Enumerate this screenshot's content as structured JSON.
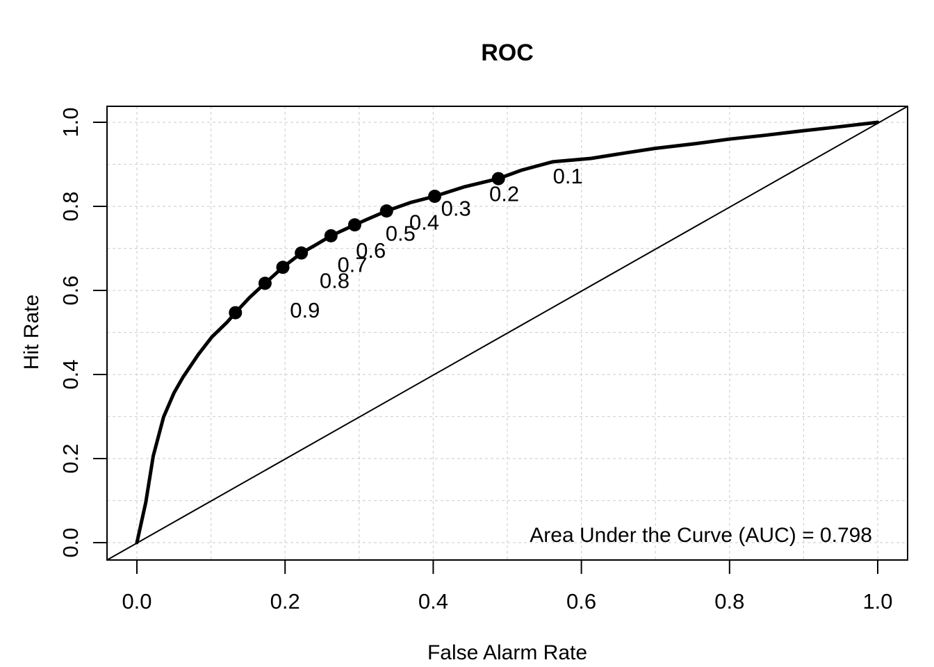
{
  "chart_data": {
    "type": "line",
    "title": "ROC",
    "xlabel": "False Alarm Rate",
    "ylabel": "Hit Rate",
    "xlim": [
      0,
      1
    ],
    "ylim": [
      0,
      1
    ],
    "x_tick_values": [
      0,
      0.2,
      0.4,
      0.6,
      0.8,
      1.0
    ],
    "x_tick_labels": [
      "0.0",
      "0.2",
      "0.4",
      "0.6",
      "0.8",
      "1.0"
    ],
    "y_tick_values": [
      0,
      0.2,
      0.4,
      0.6,
      0.8,
      1.0
    ],
    "y_tick_labels": [
      "0.0",
      "0.2",
      "0.4",
      "0.6",
      "0.8",
      "1.0"
    ],
    "grid": {
      "show": true,
      "interval": 0.1,
      "style": "dashed",
      "color": "#d3d3d3"
    },
    "annotation": "Area Under the Curve (AUC) = 0.798",
    "auc": 0.798,
    "legend": "none",
    "series": [
      {
        "name": "roc-curve",
        "color": "#000000",
        "width": 5,
        "points": [
          [
            0.0,
            0.0
          ],
          [
            0.012,
            0.096
          ],
          [
            0.022,
            0.206
          ],
          [
            0.036,
            0.299
          ],
          [
            0.039,
            0.311
          ],
          [
            0.05,
            0.356
          ],
          [
            0.062,
            0.393
          ],
          [
            0.083,
            0.448
          ],
          [
            0.101,
            0.489
          ],
          [
            0.122,
            0.525
          ],
          [
            0.133,
            0.547
          ],
          [
            0.152,
            0.583
          ],
          [
            0.173,
            0.617
          ],
          [
            0.197,
            0.655
          ],
          [
            0.222,
            0.689
          ],
          [
            0.242,
            0.709
          ],
          [
            0.262,
            0.73
          ],
          [
            0.294,
            0.756
          ],
          [
            0.312,
            0.77
          ],
          [
            0.337,
            0.789
          ],
          [
            0.369,
            0.809
          ],
          [
            0.402,
            0.824
          ],
          [
            0.441,
            0.846
          ],
          [
            0.488,
            0.866
          ],
          [
            0.519,
            0.886
          ],
          [
            0.561,
            0.906
          ],
          [
            0.613,
            0.914
          ],
          [
            0.659,
            0.927
          ],
          [
            0.7,
            0.938
          ],
          [
            0.753,
            0.949
          ],
          [
            0.8,
            0.96
          ],
          [
            0.847,
            0.969
          ],
          [
            0.9,
            0.98
          ],
          [
            0.941,
            0.988
          ],
          [
            1.0,
            1.0
          ]
        ]
      },
      {
        "name": "chance-diagonal",
        "color": "#000000",
        "width": 2,
        "extend_to_box": true,
        "points": [
          [
            0,
            0
          ],
          [
            1,
            1
          ]
        ]
      }
    ],
    "threshold_points": [
      {
        "label": "0.9",
        "x": 0.133,
        "y": 0.547
      },
      {
        "label": "0.8",
        "x": 0.173,
        "y": 0.617
      },
      {
        "label": "0.7",
        "x": 0.197,
        "y": 0.655
      },
      {
        "label": "0.6",
        "x": 0.222,
        "y": 0.689
      },
      {
        "label": "0.5",
        "x": 0.262,
        "y": 0.73
      },
      {
        "label": "0.4",
        "x": 0.294,
        "y": 0.756
      },
      {
        "label": "0.3",
        "x": 0.337,
        "y": 0.789
      },
      {
        "label": "0.2",
        "x": 0.402,
        "y": 0.824
      },
      {
        "label": "0.1",
        "x": 0.488,
        "y": 0.866
      }
    ]
  },
  "colors": {
    "background": "#ffffff",
    "foreground": "#000000",
    "grid": "#d3d3d3"
  }
}
